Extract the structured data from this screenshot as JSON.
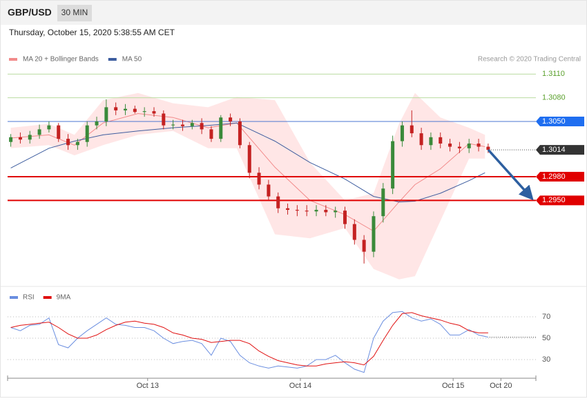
{
  "header": {
    "symbol": "GBP/USD",
    "timeframe": "30 MIN",
    "datetime": "Thursday, October 15, 2020 5:38:55 AM CET"
  },
  "credit": "Research © 2020 Trading Central",
  "chart_data": [
    {
      "type": "candlestick",
      "x": [
        1,
        4,
        7,
        10,
        13,
        16,
        19,
        22,
        25,
        28,
        31,
        34,
        37,
        40,
        43,
        46,
        49,
        52,
        55,
        58,
        61,
        64,
        67,
        70,
        73,
        76,
        79,
        82,
        85,
        88,
        91,
        94,
        97,
        100,
        103,
        106,
        109,
        112,
        115,
        118,
        121,
        124,
        127,
        130,
        133,
        136,
        139,
        142,
        145,
        148,
        151
      ],
      "open": [
        1.3024,
        1.303,
        1.3027,
        1.3033,
        1.304,
        1.3045,
        1.3028,
        1.302,
        1.3024,
        1.3045,
        1.305,
        1.3068,
        1.3064,
        1.3066,
        1.3062,
        1.3063,
        1.306,
        1.3045,
        1.3046,
        1.3044,
        1.3048,
        1.304,
        1.3028,
        1.3055,
        1.305,
        1.302,
        1.2985,
        1.297,
        1.2955,
        1.294,
        1.2938,
        1.2937,
        1.2936,
        1.2938,
        1.2935,
        1.2937,
        1.292,
        1.29,
        1.2885,
        1.293,
        1.2965,
        1.3025,
        1.3045,
        1.3035,
        1.302,
        1.303,
        1.3022,
        1.3018,
        1.3016,
        1.3022,
        1.3018
      ],
      "high": [
        1.3034,
        1.3036,
        1.3038,
        1.3046,
        1.305,
        1.3048,
        1.3034,
        1.3028,
        1.305,
        1.3056,
        1.3078,
        1.3074,
        1.3072,
        1.307,
        1.3068,
        1.3068,
        1.3064,
        1.3052,
        1.3052,
        1.3052,
        1.3054,
        1.3044,
        1.3058,
        1.306,
        1.3054,
        1.3024,
        1.2992,
        1.2976,
        1.296,
        1.2946,
        1.2944,
        1.2944,
        1.2944,
        1.2944,
        1.2942,
        1.2942,
        1.2926,
        1.2906,
        1.2936,
        1.2972,
        1.3032,
        1.305,
        1.3064,
        1.3042,
        1.3036,
        1.3036,
        1.3028,
        1.3024,
        1.3028,
        1.3028,
        1.3022
      ],
      "low": [
        1.3018,
        1.3022,
        1.3022,
        1.3028,
        1.3036,
        1.3024,
        1.3014,
        1.3014,
        1.3018,
        1.304,
        1.3044,
        1.3058,
        1.3058,
        1.306,
        1.3056,
        1.3056,
        1.304,
        1.304,
        1.3038,
        1.304,
        1.3034,
        1.3024,
        1.3024,
        1.3044,
        1.3016,
        1.2978,
        1.2964,
        1.295,
        1.2934,
        1.2932,
        1.293,
        1.293,
        1.293,
        1.293,
        1.2928,
        1.2914,
        1.2894,
        1.287,
        1.2878,
        1.2922,
        1.2958,
        1.3018,
        1.303,
        1.3014,
        1.3014,
        1.3016,
        1.3012,
        1.301,
        1.301,
        1.3012,
        1.301
      ],
      "close": [
        1.303,
        1.3027,
        1.3033,
        1.304,
        1.3045,
        1.3028,
        1.302,
        1.3024,
        1.3045,
        1.305,
        1.3068,
        1.3064,
        1.3066,
        1.3062,
        1.3063,
        1.306,
        1.3045,
        1.3046,
        1.3044,
        1.3048,
        1.304,
        1.3028,
        1.3055,
        1.305,
        1.302,
        1.2985,
        1.297,
        1.2955,
        1.294,
        1.2938,
        1.2937,
        1.2936,
        1.2938,
        1.2935,
        1.2937,
        1.292,
        1.29,
        1.2885,
        1.293,
        1.2965,
        1.3025,
        1.3045,
        1.3035,
        1.302,
        1.303,
        1.3022,
        1.3018,
        1.3016,
        1.3022,
        1.3018,
        1.3014
      ],
      "up_color": "#3a8a3a",
      "down_color": "#c42222",
      "xlim": [
        0,
        166
      ],
      "ylim": [
        1.2841,
        1.3147
      ],
      "series": [
        {
          "name": "MA 20 + Bollinger Bands",
          "color": "#f28b8b",
          "band_color": "#ffdede",
          "x": [
            1,
            13,
            21,
            30,
            41,
            52,
            63,
            72,
            84,
            95,
            106,
            115,
            123,
            128,
            136,
            145,
            150
          ],
          "values": [
            1.3029,
            1.3033,
            1.302,
            1.3048,
            1.306,
            1.3055,
            1.3042,
            1.3048,
            1.2992,
            1.295,
            1.2932,
            1.2911,
            1.2948,
            1.297,
            1.299,
            1.3022,
            1.3018
          ],
          "upper": [
            1.3042,
            1.3047,
            1.3033,
            1.3077,
            1.3086,
            1.3073,
            1.3068,
            1.3081,
            1.3077,
            1.2998,
            1.295,
            1.2959,
            1.3047,
            1.3086,
            1.3055,
            1.3042,
            1.3033
          ],
          "lower": [
            1.3016,
            1.302,
            1.3007,
            1.302,
            1.3033,
            1.3038,
            1.3016,
            1.3016,
            1.2907,
            1.2902,
            1.2915,
            1.2863,
            1.285,
            1.2854,
            1.2924,
            1.3003,
            1.3003
          ]
        },
        {
          "name": "MA 50",
          "color": "#3d5d9f",
          "x": [
            1,
            13,
            21,
            30,
            41,
            52,
            63,
            72,
            84,
            95,
            106,
            115,
            123,
            128,
            136,
            145,
            150
          ],
          "values": [
            1.2991,
            1.3016,
            1.3025,
            1.3033,
            1.3038,
            1.3042,
            1.3045,
            1.3048,
            1.3025,
            1.2998,
            1.2977,
            1.2955,
            1.2948,
            1.2949,
            1.2959,
            1.2975,
            1.2985
          ]
        }
      ],
      "levels": [
        {
          "value": 1.311,
          "label": "1.3110",
          "color": "#5aa02c",
          "line_color": "#b9dca0",
          "box": false,
          "line": "solid"
        },
        {
          "value": 1.308,
          "label": "1.3080",
          "color": "#5aa02c",
          "line_color": "#b9dca0",
          "box": false,
          "line": "solid"
        },
        {
          "value": 1.305,
          "label": "1.3050",
          "color": "#1f6ef0",
          "line_color": "#4a76d0",
          "box": true,
          "line": "solid"
        },
        {
          "value": 1.3014,
          "label": "1.3014",
          "color": "#333333",
          "line_color": "#444444",
          "box": true,
          "line": "dotted"
        },
        {
          "value": 1.298,
          "label": "1.2980",
          "color": "#e00000",
          "line_color": "#e00000",
          "box": true,
          "line": "solid"
        },
        {
          "value": 1.295,
          "label": "1.2950",
          "color": "#e00000",
          "line_color": "#e00000",
          "box": true,
          "line": "solid"
        }
      ]
    },
    {
      "type": "line",
      "xlim": [
        0,
        166
      ],
      "ylim": [
        14.5,
        82.3
      ],
      "yticks": [
        30,
        50,
        70
      ],
      "xticks": [
        {
          "value": 44,
          "label": "Oct 13"
        },
        {
          "value": 92,
          "label": "Oct 14"
        },
        {
          "value": 140,
          "label": "Oct 15"
        },
        {
          "value": 155,
          "label": "Oct 20"
        }
      ],
      "x": [
        1,
        4,
        7,
        10,
        13,
        16,
        19,
        22,
        25,
        28,
        31,
        34,
        37,
        40,
        43,
        46,
        49,
        52,
        55,
        58,
        61,
        64,
        67,
        70,
        73,
        76,
        79,
        82,
        85,
        88,
        91,
        94,
        97,
        100,
        103,
        106,
        109,
        112,
        115,
        118,
        121,
        124,
        127,
        130,
        133,
        136,
        139,
        142,
        145,
        148,
        151
      ],
      "series": [
        {
          "name": "RSI",
          "color": "#6a8ee0",
          "values": [
            60,
            57,
            62,
            63,
            69,
            44,
            41,
            50,
            57,
            63,
            69,
            63,
            62,
            60,
            60,
            57,
            50,
            45,
            47,
            48,
            45,
            34,
            50,
            47,
            34,
            27,
            24,
            22,
            24,
            23,
            22,
            24,
            30,
            30,
            34,
            27,
            21,
            18,
            50,
            66,
            74,
            75,
            69,
            66,
            68,
            63,
            53,
            53,
            58,
            53,
            51
          ]
        },
        {
          "name": "9MA",
          "color": "#e01010",
          "values": [
            60,
            62,
            63,
            64,
            65,
            60,
            54,
            50,
            50,
            53,
            58,
            62,
            65,
            66,
            64,
            63,
            60,
            55,
            53,
            50,
            49,
            46,
            47,
            48,
            48,
            45,
            38,
            33,
            29,
            27,
            25,
            24,
            24,
            26,
            27,
            28,
            27,
            25,
            33,
            48,
            62,
            73,
            74,
            71,
            69,
            67,
            64,
            62,
            57,
            55,
            55
          ]
        }
      ]
    }
  ]
}
